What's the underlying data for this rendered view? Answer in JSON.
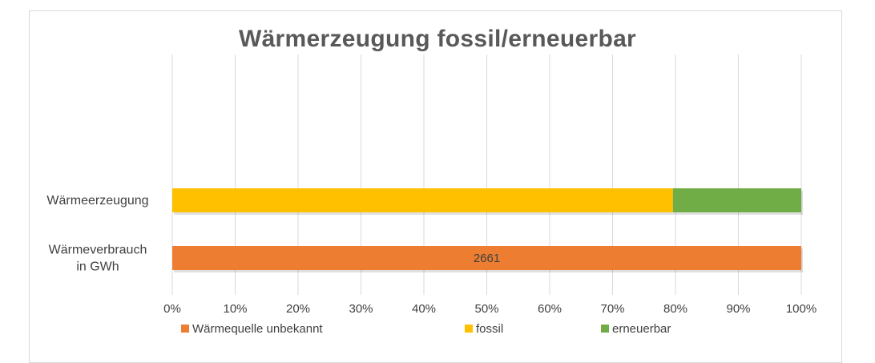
{
  "chart_data": {
    "type": "bar",
    "orientation": "horizontal",
    "stacked": "100%",
    "title": "Wärmerzeugung fossil/erneuerbar",
    "categories": [
      "Wärmeerzeugung",
      "Wärmeverbrauch in GWh"
    ],
    "category_lines": [
      [
        "Wärmeerzeugung"
      ],
      [
        "Wärmeverbrauch",
        "in GWh"
      ]
    ],
    "series": [
      {
        "name": "Wärmequelle unbekannt",
        "color": "#ED7D31",
        "values": [
          0,
          100
        ],
        "data_labels": [
          "",
          "2661"
        ]
      },
      {
        "name": "fossil",
        "color": "#FFC000",
        "values": [
          79.6,
          0
        ],
        "data_labels": [
          "",
          ""
        ]
      },
      {
        "name": "erneuerbar",
        "color": "#70AD47",
        "values": [
          20.4,
          0
        ],
        "data_labels": [
          "",
          ""
        ]
      }
    ],
    "xlim": [
      0,
      100
    ],
    "xticks": [
      "0%",
      "10%",
      "20%",
      "30%",
      "40%",
      "50%",
      "60%",
      "70%",
      "80%",
      "90%",
      "100%"
    ],
    "grid": true,
    "legend_position": "bottom"
  }
}
